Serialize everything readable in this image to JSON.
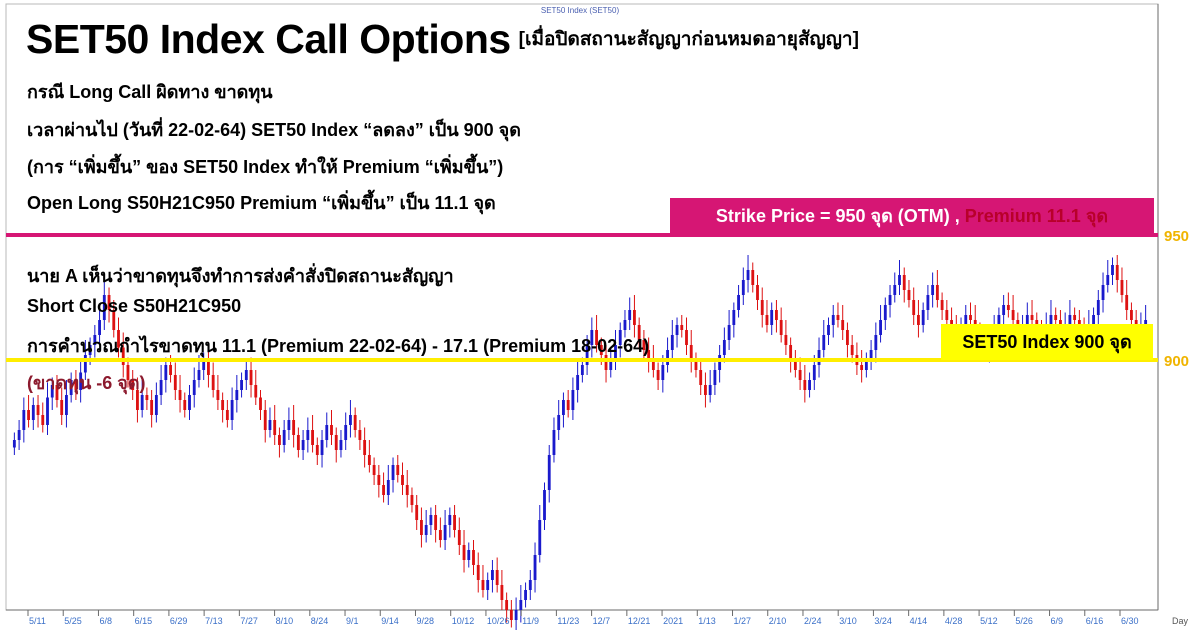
{
  "chart_caption": "SET50 Index (SET50)",
  "title": {
    "main": "SET50 Index Call Options",
    "suffix": "[เมื่อปิดสถานะสัญญาก่อนหมดอายุสัญญา]"
  },
  "text_block_top": [
    "กรณี Long Call ผิดทาง ขาดทุน",
    "เวลาผ่านไป (วันที่ 22-02-64) SET50 Index “ลดลง” เป็น 900 จุด",
    "(การ “เพิ่มขึ้น” ของ SET50 Index ทำให้ Premium “เพิ่มขึ้น”)",
    "Open Long  S50H21C950 Premium “เพิ่มขึ้น” เป็น 11.1 จุด"
  ],
  "text_block_bottom": [
    "นาย A เห็นว่าขาดทุนจึงทำการส่งคำสั่งปิดสถานะสัญญา",
    "Short Close S50H21C950",
    "การคำนวณกำไรขาดทุน 11.1 (Premium 22-02-64) - 17.1 (Premium 18-02-64)"
  ],
  "loss_note": "(ขาดทุน -6 จุด)",
  "strike_box": {
    "label": "Strike Price = 950 จุด (OTM) , ",
    "premium": "Premium 11.1  จุด"
  },
  "index_box": "SET50 Index 900 จุด",
  "colors": {
    "strike_line": "#d61674",
    "index_line": "#ffee00",
    "axis_labels": "#f0b400",
    "up_candle": "#1a1acc",
    "down_candle": "#dd1111",
    "date_labels": "#3a6fc8"
  },
  "chart_data": {
    "type": "candlestick",
    "title": "SET50 Index (SET50)",
    "y_axis_labels": [
      950,
      900
    ],
    "ylim": [
      775,
      960
    ],
    "reference_lines": [
      {
        "value": 950,
        "label": "950"
      },
      {
        "value": 900,
        "label": "900"
      }
    ],
    "x_tick_labels": [
      "5/11",
      "5/25",
      "6/8",
      "6/15",
      "6/29",
      "7/13",
      "7/27",
      "8/10",
      "8/24",
      "9/1",
      "9/14",
      "9/28",
      "10/12",
      "10/26",
      "11/9",
      "11/23",
      "12/7",
      "12/21",
      "2021",
      "1/13",
      "1/27",
      "2/10",
      "2/24",
      "3/10",
      "3/24",
      "4/14",
      "4/28",
      "5/12",
      "5/26",
      "6/9",
      "6/16",
      "6/30"
    ],
    "x_axis_unit": "Day",
    "closes": [
      868,
      872,
      880,
      876,
      882,
      878,
      874,
      885,
      890,
      884,
      878,
      886,
      892,
      888,
      895,
      902,
      906,
      910,
      916,
      926,
      920,
      912,
      905,
      898,
      892,
      888,
      880,
      886,
      884,
      878,
      886,
      892,
      898,
      894,
      888,
      884,
      880,
      886,
      892,
      896,
      900,
      894,
      888,
      884,
      880,
      876,
      884,
      888,
      892,
      896,
      890,
      885,
      880,
      872,
      876,
      870,
      866,
      872,
      876,
      870,
      864,
      868,
      872,
      866,
      862,
      868,
      874,
      870,
      864,
      868,
      874,
      878,
      872,
      868,
      862,
      858,
      854,
      850,
      846,
      852,
      858,
      854,
      850,
      846,
      842,
      836,
      830,
      834,
      838,
      832,
      828,
      834,
      838,
      832,
      826,
      820,
      824,
      818,
      812,
      808,
      812,
      816,
      810,
      804,
      800,
      796,
      800,
      804,
      808,
      812,
      822,
      836,
      848,
      862,
      872,
      878,
      884,
      880,
      888,
      894,
      898,
      906,
      912,
      906,
      902,
      896,
      900,
      906,
      912,
      916,
      920,
      914,
      908,
      904,
      900,
      896,
      892,
      898,
      904,
      910,
      914,
      912,
      906,
      900,
      896,
      890,
      886,
      890,
      896,
      902,
      908,
      914,
      920,
      926,
      932,
      936,
      930,
      924,
      918,
      914,
      920,
      916,
      910,
      906,
      900,
      896,
      892,
      888,
      892,
      898,
      904,
      910,
      914,
      918,
      916,
      912,
      906,
      902,
      898,
      896,
      900,
      904,
      910,
      916,
      922,
      926,
      930,
      934,
      928,
      924,
      918,
      914,
      920,
      926,
      930,
      924,
      920,
      916,
      912,
      908,
      914,
      918,
      916,
      912,
      908,
      904,
      908,
      912,
      918,
      922,
      920,
      916,
      912,
      914,
      918,
      916,
      912,
      910,
      914,
      918,
      916,
      912,
      914,
      918,
      916,
      912,
      910,
      914,
      918,
      924,
      930,
      934,
      938,
      932,
      926,
      920,
      916,
      912,
      914,
      916
    ]
  }
}
